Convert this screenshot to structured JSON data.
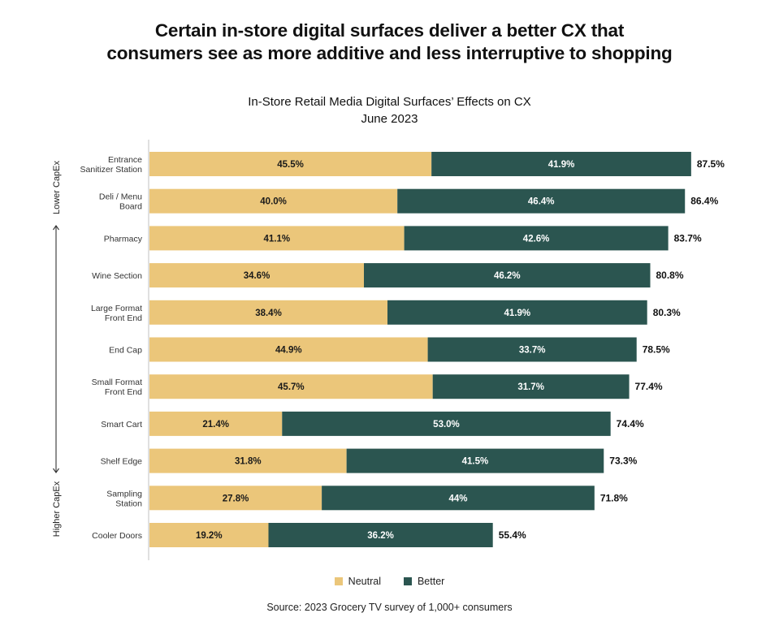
{
  "headline": {
    "line1": "Certain in-store digital surfaces deliver a better CX that",
    "line2": "consumers see as more additive and less interruptive to shopping"
  },
  "source": "Source: 2023 Grocery TV survey of 1,000+ consumers",
  "colors": {
    "neutral": "#EBC67A",
    "better": "#2B5550",
    "better_text": "#ffffff",
    "neutral_text": "#1a1a1a",
    "axis": "#cccccc"
  },
  "chart_data": {
    "type": "bar",
    "orientation": "horizontal",
    "stacked": true,
    "title": "In-Store Retail Media Digital Surfaces’ Effects on CX",
    "subtitle": "June 2023",
    "xlabel": "",
    "ylabel": "",
    "xlim": [
      0,
      100
    ],
    "grid": false,
    "legend_position": "bottom-center",
    "side_axis": {
      "top_label": "Lower CapEx",
      "bottom_label": "Higher CapEx",
      "arrow": "double-headed vertical"
    },
    "categories": [
      [
        "Entrance",
        "Sanitizer Station"
      ],
      [
        "Deli / Menu",
        "Board"
      ],
      [
        "Pharmacy"
      ],
      [
        "Wine Section"
      ],
      [
        "Large Format",
        "Front End"
      ],
      [
        "End Cap"
      ],
      [
        "Small Format",
        "Front End"
      ],
      [
        "Smart Cart"
      ],
      [
        "Shelf Edge"
      ],
      [
        "Sampling",
        "Station"
      ],
      [
        "Cooler Doors"
      ]
    ],
    "series": [
      {
        "name": "Neutral",
        "values": [
          45.5,
          40.0,
          41.1,
          34.6,
          38.4,
          44.9,
          45.7,
          21.4,
          31.8,
          27.8,
          19.2
        ],
        "labels": [
          "45.5%",
          "40.0%",
          "41.1%",
          "34.6%",
          "38.4%",
          "44.9%",
          "45.7%",
          "21.4%",
          "31.8%",
          "27.8%",
          "19.2%"
        ]
      },
      {
        "name": "Better",
        "values": [
          41.9,
          46.4,
          42.6,
          46.2,
          41.9,
          33.7,
          31.7,
          53.0,
          41.5,
          44.0,
          36.2
        ],
        "labels": [
          "41.9%",
          "46.4%",
          "42.6%",
          "46.2%",
          "41.9%",
          "33.7%",
          "31.7%",
          "53.0%",
          "41.5%",
          "44%",
          "36.2%"
        ]
      }
    ],
    "totals": [
      87.5,
      86.4,
      83.7,
      80.8,
      80.3,
      78.5,
      77.4,
      74.4,
      73.3,
      71.8,
      55.4
    ],
    "total_labels": [
      "87.5%",
      "86.4%",
      "83.7%",
      "80.8%",
      "80.3%",
      "78.5%",
      "77.4%",
      "74.4%",
      "73.3%",
      "71.8%",
      "55.4%"
    ]
  }
}
